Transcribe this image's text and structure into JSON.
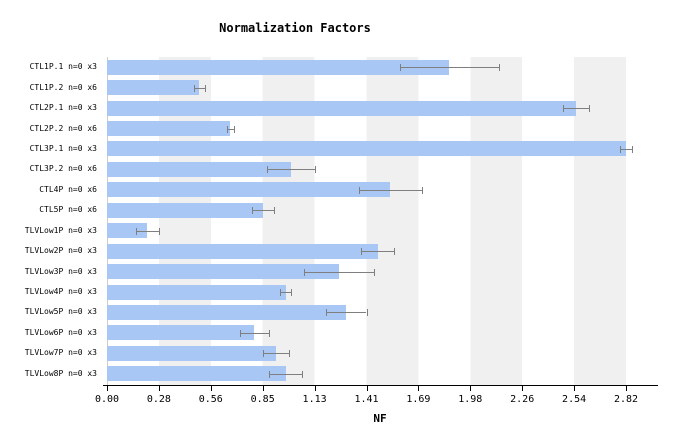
{
  "title": "Normalization Factors",
  "x_axis": {
    "label": "NF",
    "tick_labels": [
      "0.00",
      "0.28",
      "0.56",
      "0.85",
      "1.13",
      "1.41",
      "1.69",
      "1.98",
      "2.26",
      "2.54",
      "2.82"
    ]
  },
  "colors": {
    "bar": "#a9c7f4",
    "error_bar": "#7f7f7f",
    "stripe": "#f0f0f0",
    "axis": "#000000"
  },
  "chart_data": {
    "type": "bar",
    "orientation": "horizontal",
    "title": "Normalization Factors",
    "xlabel": "NF",
    "xlim": [
      0,
      2.82
    ],
    "grid": "alternating-vertical-stripes",
    "legend": "none",
    "categories": [
      "CTL1P.1 n=0 x3",
      "CTL1P.2 n=0 x6",
      "CTL2P.1 n=0 x3",
      "CTL2P.2 n=0 x6",
      "CTL3P.1 n=0 x3",
      "CTL3P.2 n=0 x6",
      "CTL4P n=0 x6",
      "CTL5P n=0 x6",
      "TLVLow1P n=0 x3",
      "TLVLow2P n=0 x3",
      "TLVLow3P n=0 x3",
      "TLVLow4P n=0 x3",
      "TLVLow5P n=0 x3",
      "TLVLow6P n=0 x3",
      "TLVLow7P n=0 x3",
      "TLVLow8P n=0 x3"
    ],
    "values": [
      1.86,
      0.5,
      2.55,
      0.67,
      2.82,
      1.0,
      1.54,
      0.85,
      0.22,
      1.47,
      1.26,
      0.97,
      1.3,
      0.8,
      0.92,
      0.97
    ],
    "errors": [
      0.27,
      0.03,
      0.07,
      0.02,
      0.03,
      0.13,
      0.17,
      0.06,
      0.06,
      0.09,
      0.19,
      0.03,
      0.11,
      0.08,
      0.07,
      0.09
    ]
  }
}
